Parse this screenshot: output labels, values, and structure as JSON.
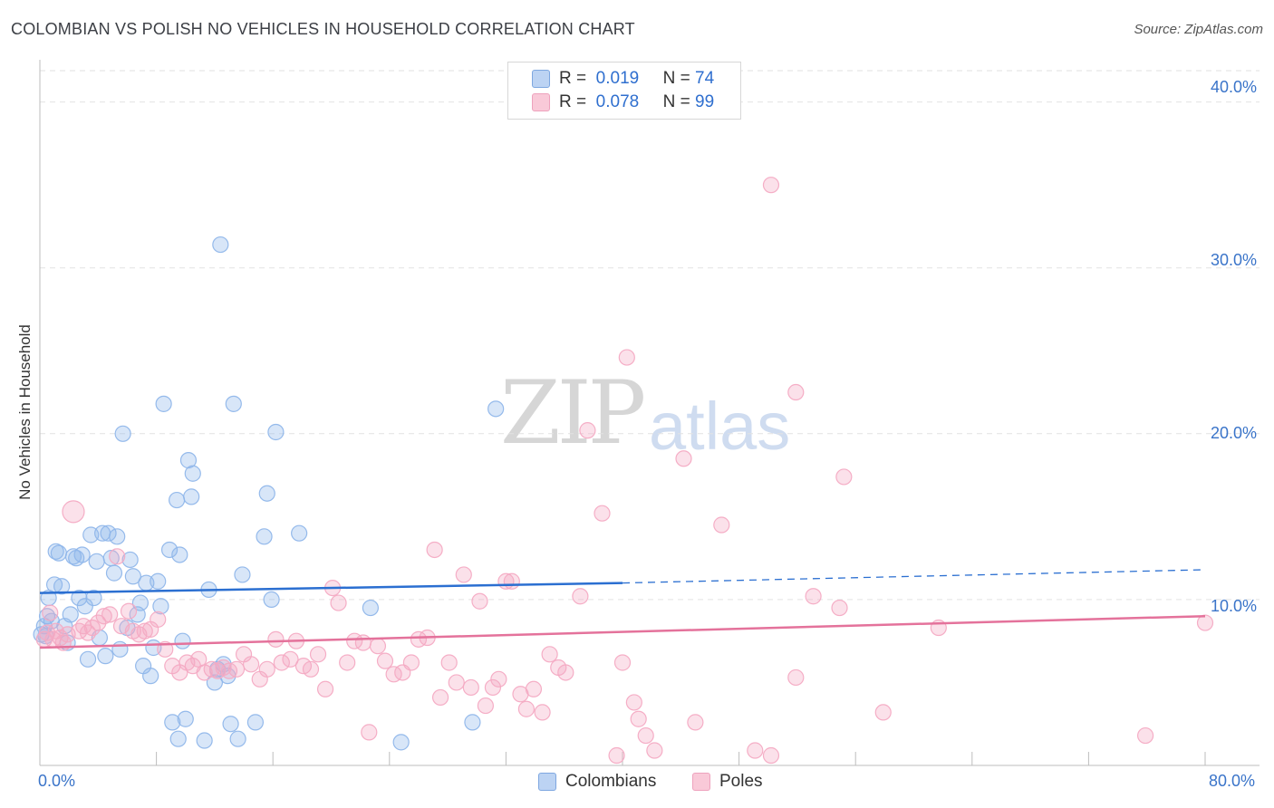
{
  "title": "COLOMBIAN VS POLISH NO VEHICLES IN HOUSEHOLD CORRELATION CHART",
  "source": "Source: ZipAtlas.com",
  "watermark": {
    "zip": "ZIP",
    "atlas": "atlas"
  },
  "legend_top": [
    {
      "r_label": "R =",
      "r_value": "0.019",
      "n_label": "N =",
      "n_value": "74"
    },
    {
      "r_label": "R =",
      "r_value": "0.078",
      "n_label": "N =",
      "n_value": "99"
    }
  ],
  "legend_bottom": [
    "Colombians",
    "Poles"
  ],
  "chart_data": {
    "type": "scatter",
    "title": "COLOMBIAN VS POLISH NO VEHICLES IN HOUSEHOLD CORRELATION CHART",
    "xlabel": "",
    "ylabel": "No Vehicles in Household",
    "xlim": [
      0,
      80
    ],
    "ylim": [
      0,
      42
    ],
    "x_tick_labels": [
      "0.0%",
      "80.0%"
    ],
    "y_tick_labels": [
      "10.0%",
      "20.0%",
      "30.0%",
      "40.0%"
    ],
    "y_ticks": [
      10,
      20,
      30,
      40
    ],
    "grid": true,
    "legend_position": "top-center",
    "series": [
      {
        "name": "Colombians",
        "color": "#8fb6ea",
        "line_color": "#2b6fd1",
        "r": 0.019,
        "n": 74,
        "trend": {
          "x0": 0,
          "y0": 10.4,
          "x1": 40,
          "y1": 11.0,
          "dashed_to_x": 80,
          "dashed_to_y": 11.8
        },
        "points": [
          [
            0.3,
            8.4
          ],
          [
            0.4,
            7.8
          ],
          [
            0.5,
            9.0
          ],
          [
            0.6,
            10.1
          ],
          [
            0.8,
            8.7
          ],
          [
            1.0,
            10.9
          ],
          [
            1.1,
            12.9
          ],
          [
            1.3,
            12.8
          ],
          [
            1.5,
            10.8
          ],
          [
            1.7,
            8.4
          ],
          [
            1.9,
            7.4
          ],
          [
            2.1,
            9.1
          ],
          [
            2.3,
            12.6
          ],
          [
            2.5,
            12.5
          ],
          [
            2.7,
            10.1
          ],
          [
            2.9,
            12.7
          ],
          [
            3.1,
            9.6
          ],
          [
            3.3,
            6.4
          ],
          [
            3.5,
            13.9
          ],
          [
            3.7,
            10.1
          ],
          [
            3.9,
            12.3
          ],
          [
            4.1,
            7.7
          ],
          [
            4.3,
            14.0
          ],
          [
            4.5,
            6.6
          ],
          [
            4.7,
            14.0
          ],
          [
            4.9,
            12.5
          ],
          [
            5.1,
            11.6
          ],
          [
            5.3,
            13.8
          ],
          [
            5.5,
            7.0
          ],
          [
            5.7,
            20.0
          ],
          [
            6.0,
            8.3
          ],
          [
            6.2,
            12.4
          ],
          [
            6.4,
            11.4
          ],
          [
            6.7,
            9.1
          ],
          [
            6.9,
            9.8
          ],
          [
            7.1,
            6.0
          ],
          [
            7.3,
            11.0
          ],
          [
            7.6,
            5.4
          ],
          [
            7.8,
            7.1
          ],
          [
            8.1,
            11.1
          ],
          [
            8.3,
            9.6
          ],
          [
            8.5,
            21.8
          ],
          [
            8.9,
            13.0
          ],
          [
            9.1,
            2.6
          ],
          [
            9.4,
            16.0
          ],
          [
            9.6,
            12.7
          ],
          [
            9.8,
            7.5
          ],
          [
            10.0,
            2.8
          ],
          [
            10.2,
            18.4
          ],
          [
            10.5,
            17.6
          ],
          [
            10.4,
            16.2
          ],
          [
            9.5,
            1.6
          ],
          [
            11.3,
            1.5
          ],
          [
            11.6,
            10.6
          ],
          [
            12.0,
            5.0
          ],
          [
            12.2,
            5.8
          ],
          [
            12.4,
            31.4
          ],
          [
            12.6,
            6.1
          ],
          [
            12.9,
            5.4
          ],
          [
            13.1,
            2.5
          ],
          [
            13.3,
            21.8
          ],
          [
            13.6,
            1.6
          ],
          [
            13.9,
            11.5
          ],
          [
            14.8,
            2.6
          ],
          [
            15.4,
            13.8
          ],
          [
            15.6,
            16.4
          ],
          [
            15.9,
            10.0
          ],
          [
            16.2,
            20.1
          ],
          [
            17.8,
            14.0
          ],
          [
            22.7,
            9.5
          ],
          [
            24.8,
            1.4
          ],
          [
            29.7,
            2.6
          ],
          [
            31.3,
            21.5
          ],
          [
            0.1,
            7.9
          ]
        ]
      },
      {
        "name": "Poles",
        "color": "#f4aac3",
        "line_color": "#e4729b",
        "r": 0.078,
        "n": 99,
        "trend": {
          "x0": 0,
          "y0": 7.1,
          "x1": 80,
          "y1": 9.0
        },
        "points": [
          [
            0.3,
            7.6
          ],
          [
            0.5,
            8.0
          ],
          [
            0.7,
            9.2
          ],
          [
            0.9,
            7.6
          ],
          [
            1.1,
            8.1
          ],
          [
            1.4,
            7.7
          ],
          [
            1.6,
            7.4
          ],
          [
            1.9,
            7.9
          ],
          [
            2.3,
            15.3
          ],
          [
            2.7,
            8.1
          ],
          [
            3.0,
            8.4
          ],
          [
            3.3,
            8.0
          ],
          [
            3.6,
            8.3
          ],
          [
            4.0,
            8.6
          ],
          [
            4.4,
            9.0
          ],
          [
            4.8,
            9.1
          ],
          [
            5.3,
            12.6
          ],
          [
            5.6,
            8.4
          ],
          [
            6.1,
            9.3
          ],
          [
            6.4,
            8.1
          ],
          [
            6.8,
            7.9
          ],
          [
            7.2,
            8.1
          ],
          [
            7.6,
            8.2
          ],
          [
            8.1,
            8.8
          ],
          [
            8.6,
            7.0
          ],
          [
            9.1,
            6.0
          ],
          [
            9.6,
            5.6
          ],
          [
            10.1,
            6.2
          ],
          [
            10.5,
            6.0
          ],
          [
            10.9,
            6.4
          ],
          [
            11.3,
            5.6
          ],
          [
            11.8,
            5.8
          ],
          [
            12.2,
            5.7
          ],
          [
            12.6,
            5.9
          ],
          [
            13.0,
            5.7
          ],
          [
            13.5,
            5.8
          ],
          [
            14.0,
            6.7
          ],
          [
            14.5,
            6.1
          ],
          [
            15.1,
            5.2
          ],
          [
            15.6,
            5.8
          ],
          [
            16.2,
            7.6
          ],
          [
            16.6,
            6.2
          ],
          [
            17.2,
            6.4
          ],
          [
            17.6,
            7.5
          ],
          [
            18.1,
            6.0
          ],
          [
            18.6,
            5.8
          ],
          [
            19.1,
            6.7
          ],
          [
            19.6,
            4.6
          ],
          [
            20.1,
            10.7
          ],
          [
            20.5,
            9.8
          ],
          [
            21.1,
            6.2
          ],
          [
            21.6,
            7.5
          ],
          [
            22.2,
            7.4
          ],
          [
            22.6,
            2.0
          ],
          [
            23.2,
            7.2
          ],
          [
            23.7,
            6.3
          ],
          [
            24.3,
            5.5
          ],
          [
            24.9,
            5.6
          ],
          [
            25.5,
            6.2
          ],
          [
            26.0,
            7.6
          ],
          [
            26.6,
            7.7
          ],
          [
            27.1,
            13.0
          ],
          [
            27.5,
            4.1
          ],
          [
            28.1,
            6.2
          ],
          [
            28.6,
            5.0
          ],
          [
            29.1,
            11.5
          ],
          [
            29.6,
            4.7
          ],
          [
            30.2,
            9.9
          ],
          [
            30.6,
            3.6
          ],
          [
            31.1,
            4.7
          ],
          [
            31.5,
            5.2
          ],
          [
            32.0,
            11.1
          ],
          [
            32.4,
            11.1
          ],
          [
            33.0,
            4.3
          ],
          [
            33.4,
            3.4
          ],
          [
            33.9,
            4.6
          ],
          [
            34.5,
            3.2
          ],
          [
            35.0,
            6.7
          ],
          [
            35.6,
            5.9
          ],
          [
            36.1,
            5.6
          ],
          [
            37.1,
            10.2
          ],
          [
            37.6,
            20.2
          ],
          [
            38.6,
            15.2
          ],
          [
            39.6,
            0.6
          ],
          [
            40.0,
            6.2
          ],
          [
            40.3,
            24.6
          ],
          [
            40.8,
            3.8
          ],
          [
            41.1,
            2.8
          ],
          [
            41.6,
            1.8
          ],
          [
            42.2,
            0.9
          ],
          [
            44.2,
            18.5
          ],
          [
            45.0,
            2.6
          ],
          [
            46.8,
            14.5
          ],
          [
            49.1,
            0.9
          ],
          [
            50.2,
            0.6
          ],
          [
            50.2,
            35.0
          ],
          [
            51.9,
            22.5
          ],
          [
            51.9,
            5.3
          ],
          [
            53.1,
            10.2
          ]
        ],
        "extra_points": [
          [
            54.9,
            9.5
          ],
          [
            55.2,
            17.4
          ],
          [
            57.9,
            3.2
          ],
          [
            61.7,
            8.3
          ],
          [
            75.9,
            1.8
          ],
          [
            80.0,
            8.6
          ]
        ]
      }
    ]
  }
}
